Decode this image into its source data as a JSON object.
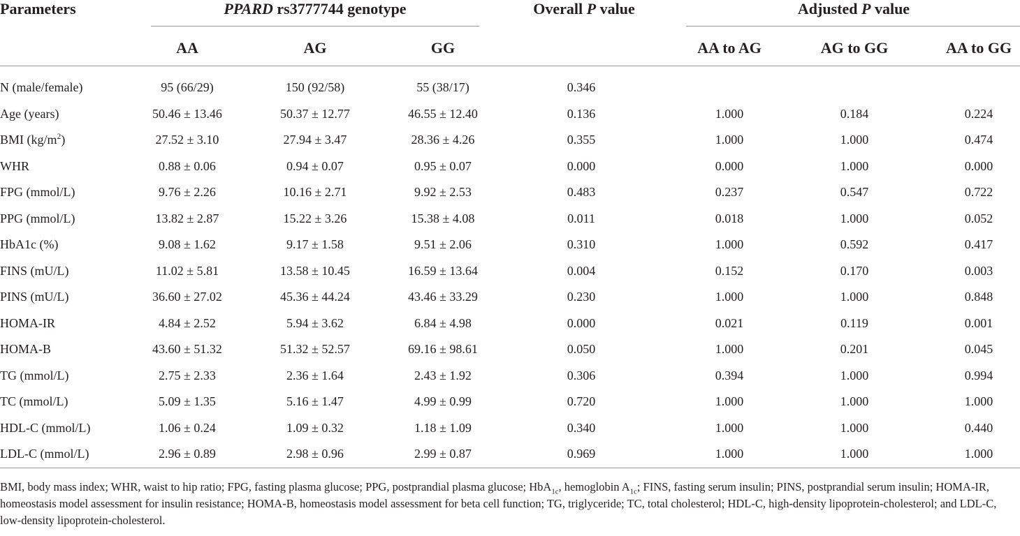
{
  "header": {
    "parameters": "Parameters",
    "genotype_gene": "PPARD",
    "genotype_rest": " rs3777744 genotype",
    "overall_pre": "Overall ",
    "overall_p": "P",
    "overall_post": " value",
    "adjusted_pre": "Adjusted ",
    "adjusted_p": "P",
    "adjusted_post": " value",
    "col_aa": "AA",
    "col_ag": "AG",
    "col_gg": "GG",
    "col_aa_ag": "AA to AG",
    "col_ag_gg": "AG to GG",
    "col_aa_gg": "AA to GG"
  },
  "rows": [
    {
      "param": "N (male/female)",
      "aa": "95 (66/29)",
      "ag": "150 (92/58)",
      "gg": "55 (38/17)",
      "overall": "0.346",
      "aa_ag": "",
      "ag_gg": "",
      "aa_gg": ""
    },
    {
      "param": "Age (years)",
      "aa": "50.46 ± 13.46",
      "ag": "50.37 ± 12.77",
      "gg": "46.55 ± 12.40",
      "overall": "0.136",
      "aa_ag": "1.000",
      "ag_gg": "0.184",
      "aa_gg": "0.224"
    },
    {
      "param": "BMI (kg/m",
      "param_sup": "2",
      "param_after": ")",
      "aa": "27.52 ± 3.10",
      "ag": "27.94 ± 3.47",
      "gg": "28.36 ± 4.26",
      "overall": "0.355",
      "aa_ag": "1.000",
      "ag_gg": "1.000",
      "aa_gg": "0.474"
    },
    {
      "param": "WHR",
      "aa": "0.88 ± 0.06",
      "ag": "0.94 ± 0.07",
      "gg": "0.95 ± 0.07",
      "overall": "0.000",
      "aa_ag": "0.000",
      "ag_gg": "1.000",
      "aa_gg": "0.000"
    },
    {
      "param": "FPG (mmol/L)",
      "aa": "9.76 ± 2.26",
      "ag": "10.16 ± 2.71",
      "gg": "9.92 ± 2.53",
      "overall": "0.483",
      "aa_ag": "0.237",
      "ag_gg": "0.547",
      "aa_gg": "0.722"
    },
    {
      "param": "PPG (mmol/L)",
      "aa": "13.82 ± 2.87",
      "ag": "15.22 ± 3.26",
      "gg": "15.38 ± 4.08",
      "overall": "0.011",
      "aa_ag": "0.018",
      "ag_gg": "1.000",
      "aa_gg": "0.052"
    },
    {
      "param": "HbA1c (%)",
      "aa": "9.08 ± 1.62",
      "ag": "9.17 ± 1.58",
      "gg": "9.51 ± 2.06",
      "overall": "0.310",
      "aa_ag": "1.000",
      "ag_gg": "0.592",
      "aa_gg": "0.417"
    },
    {
      "param": "FINS (mU/L)",
      "aa": "11.02 ± 5.81",
      "ag": "13.58 ± 10.45",
      "gg": "16.59 ± 13.64",
      "overall": "0.004",
      "aa_ag": "0.152",
      "ag_gg": "0.170",
      "aa_gg": "0.003"
    },
    {
      "param": "PINS (mU/L)",
      "aa": "36.60 ± 27.02",
      "ag": "45.36 ± 44.24",
      "gg": "43.46 ± 33.29",
      "overall": "0.230",
      "aa_ag": "1.000",
      "ag_gg": "1.000",
      "aa_gg": "0.848"
    },
    {
      "param": "HOMA-IR",
      "aa": "4.84 ± 2.52",
      "ag": "5.94 ± 3.62",
      "gg": "6.84 ± 4.98",
      "overall": "0.000",
      "aa_ag": "0.021",
      "ag_gg": "0.119",
      "aa_gg": "0.001"
    },
    {
      "param": "HOMA-B",
      "aa": "43.60 ± 51.32",
      "ag": "51.32 ± 52.57",
      "gg": "69.16 ± 98.61",
      "overall": "0.050",
      "aa_ag": "1.000",
      "ag_gg": "0.201",
      "aa_gg": "0.045"
    },
    {
      "param": "TG (mmol/L)",
      "aa": "2.75 ± 2.33",
      "ag": "2.36 ± 1.64",
      "gg": "2.43 ± 1.92",
      "overall": "0.306",
      "aa_ag": "0.394",
      "ag_gg": "1.000",
      "aa_gg": "0.994"
    },
    {
      "param": "TC (mmol/L)",
      "aa": "5.09 ± 1.35",
      "ag": "5.16 ± 1.47",
      "gg": "4.99 ± 0.99",
      "overall": "0.720",
      "aa_ag": "1.000",
      "ag_gg": "1.000",
      "aa_gg": "1.000"
    },
    {
      "param": "HDL-C (mmol/L)",
      "aa": "1.06 ± 0.24",
      "ag": "1.09 ± 0.32",
      "gg": "1.18 ± 1.09",
      "overall": "0.340",
      "aa_ag": "1.000",
      "ag_gg": "1.000",
      "aa_gg": "0.440"
    },
    {
      "param": "LDL-C (mmol/L)",
      "aa": "2.96 ± 0.89",
      "ag": "2.98 ± 0.96",
      "gg": "2.99 ± 0.87",
      "overall": "0.969",
      "aa_ag": "1.000",
      "ag_gg": "1.000",
      "aa_gg": "1.000"
    }
  ],
  "footnote": {
    "p1": "BMI, body mass index; WHR, waist to hip ratio; FPG, fasting plasma glucose; PPG, postprandial plasma glucose; HbA",
    "sub1": "1c",
    "p2": ", hemoglobin A",
    "sub2": "1c",
    "p3": "; FINS, fasting serum insulin; PINS, postprandial serum insulin; HOMA-IR, homeostasis model assessment for insulin resistance; HOMA-B, homeostasis model assessment for beta cell function; TG, triglyceride; TC, total cholesterol; HDL-C, high-density lipoprotein-cholesterol; and LDL-C, low-density lipoprotein-cholesterol."
  }
}
